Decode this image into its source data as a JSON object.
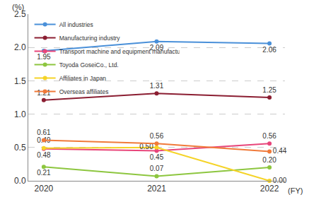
{
  "chart_data": {
    "type": "line",
    "x_label": "(FY)",
    "y_label": "(%)",
    "categories": [
      "2020",
      "2021",
      "2022"
    ],
    "ylim": [
      0,
      2.5
    ],
    "yticks": [
      {
        "value": 0,
        "label": "0.0"
      },
      0.5,
      {
        "value": 1,
        "label": "1.0"
      },
      1.5,
      {
        "value": 2,
        "label": "2.0"
      },
      2.5
    ],
    "grid": true,
    "legend": "top left",
    "data_labels": true,
    "marker": "circle",
    "series": [
      {
        "name": "All industries",
        "color": "#4a90d9",
        "values": [
          1.95,
          2.09,
          2.06
        ],
        "value_labels": [
          "1.95",
          "2.09",
          "2.06"
        ]
      },
      {
        "name": "Manufacturing industry",
        "color": "#8b1e32",
        "values": [
          1.21,
          1.31,
          1.25
        ],
        "value_labels": [
          "1.21",
          "1.31",
          "1.25"
        ]
      },
      {
        "name": "Transport machine and equipment manufacturers",
        "color": "#e8457a",
        "values": [
          0.48,
          0.45,
          0.56
        ],
        "value_labels": [
          "0.48",
          "0.45",
          "0.56"
        ]
      },
      {
        "name": "Toyoda GoseiCo., Ltd.",
        "color": "#8dc63f",
        "values": [
          0.21,
          0.07,
          0.2
        ],
        "value_labels": [
          "0.21",
          "0.07",
          "0.20"
        ]
      },
      {
        "name": "Affiliates in Japan",
        "color": "#f5d327",
        "values": [
          0.49,
          0.5,
          0.0
        ],
        "value_labels": [
          "0.49",
          "0.50",
          "0.00"
        ]
      },
      {
        "name": "Overseas affiliates",
        "color": "#f07a3a",
        "values": [
          0.61,
          0.56,
          0.44
        ],
        "value_labels": [
          "0.61",
          "0.56",
          "0.44"
        ]
      }
    ]
  }
}
